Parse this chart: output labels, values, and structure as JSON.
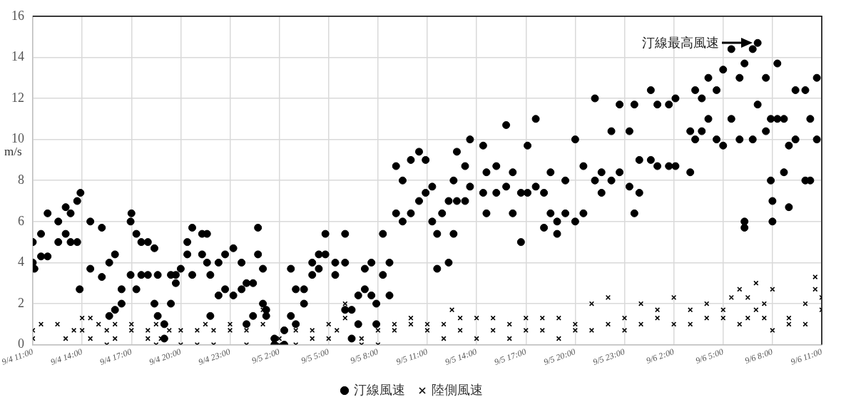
{
  "chart_data": {
    "type": "scatter",
    "ylabel": "m/s",
    "xlim": [
      "--09-04T11:00",
      "--09-06T11:00"
    ],
    "ylim": [
      0,
      16
    ],
    "xticks": [
      {
        "value": "--09-04T11:00",
        "label": "9/4 11:00"
      },
      {
        "value": "--09-04T14:00",
        "label": "9/4 14:00"
      },
      {
        "value": "--09-04T17:00",
        "label": "9/4 17:00"
      },
      {
        "value": "--09-04T20:00",
        "label": "9/4 20:00"
      },
      {
        "value": "--09-04T23:00",
        "label": "9/4 23:00"
      },
      {
        "value": "--09-05T02:00",
        "label": "9/5 2:00"
      },
      {
        "value": "--09-05T05:00",
        "label": "9/5 5:00"
      },
      {
        "value": "--09-05T08:00",
        "label": "9/5 8:00"
      },
      {
        "value": "--09-05T11:00",
        "label": "9/5 11:00"
      },
      {
        "value": "--09-05T14:00",
        "label": "9/5 14:00"
      },
      {
        "value": "--09-05T17:00",
        "label": "9/5 17:00"
      },
      {
        "value": "--09-05T20:00",
        "label": "9/5 20:00"
      },
      {
        "value": "--09-05T23:00",
        "label": "9/5 23:00"
      },
      {
        "value": "--09-06T02:00",
        "label": "9/6 2:00"
      },
      {
        "value": "--09-06T05:00",
        "label": "9/6 5:00"
      },
      {
        "value": "--09-06T08:00",
        "label": "9/6 8:00"
      },
      {
        "value": "--09-06T11:00",
        "label": "9/6 11:00"
      }
    ],
    "yticks": [
      0,
      2,
      4,
      6,
      8,
      10,
      12,
      14,
      16
    ],
    "grid": true,
    "legend": "bottom",
    "annotations": [
      "汀線最高風速"
    ],
    "series": [
      {
        "name": "汀線風速",
        "color": "#000000",
        "marker": "circle",
        "x": [
          "--09-04T11:00",
          "--09-04T11:00",
          "--09-04T11:06",
          "--09-04T11:30",
          "--09-04T11:30",
          "--09-04T11:54",
          "--09-04T11:54",
          "--09-04T12:33",
          "--09-04T12:33",
          "--09-04T13:00",
          "--09-04T13:00",
          "--09-04T13:18",
          "--09-04T13:18",
          "--09-04T13:42",
          "--09-04T13:42",
          "--09-04T13:54",
          "--09-04T13:51",
          "--09-04T14:30",
          "--09-04T14:30",
          "--09-04T15:12",
          "--09-04T15:12",
          "--09-04T15:39",
          "--09-04T15:39",
          "--09-04T16:00",
          "--09-04T16:00",
          "--09-04T16:24",
          "--09-04T16:24",
          "--09-04T16:57",
          "--09-04T16:57",
          "--09-04T17:00",
          "--09-04T17:18",
          "--09-04T17:18",
          "--09-04T17:36",
          "--09-04T17:36",
          "--09-04T18:00",
          "--09-04T18:00",
          "--09-04T18:24",
          "--09-04T18:24",
          "--09-04T18:36",
          "--09-04T18:36",
          "--09-04T19:00",
          "--09-04T19:00",
          "--09-04T19:24",
          "--09-04T19:24",
          "--09-04T19:42",
          "--09-04T19:42",
          "--09-04T20:00",
          "--09-04T20:24",
          "--09-04T20:24",
          "--09-04T20:42",
          "--09-04T20:42",
          "--09-04T21:18",
          "--09-04T21:18",
          "--09-04T21:36",
          "--09-04T21:36",
          "--09-04T21:48",
          "--09-04T21:48",
          "--09-04T22:18",
          "--09-04T22:18",
          "--09-04T22:42",
          "--09-04T22:42",
          "--09-04T23:12",
          "--09-04T23:12",
          "--09-04T23:42",
          "--09-04T23:42",
          "--09-05T00:00",
          "--09-05T00:00",
          "--09-05T00:24",
          "--09-05T00:24",
          "--09-05T00:42",
          "--09-05T00:42",
          "--09-05T01:00",
          "--09-05T01:00",
          "--09-05T01:12",
          "--09-05T01:12",
          "--09-05T01:42",
          "--09-05T01:42",
          "--09-05T02:18",
          "--09-05T02:18",
          "--09-05T02:42",
          "--09-05T02:42",
          "--09-05T03:00",
          "--09-05T03:00",
          "--09-05T03:30",
          "--09-05T03:30",
          "--09-05T04:00",
          "--09-05T04:00",
          "--09-05T04:24",
          "--09-05T04:24",
          "--09-05T04:48",
          "--09-05T04:48",
          "--09-05T05:24",
          "--09-05T05:24",
          "--09-05T06:00",
          "--09-05T06:00",
          "--09-05T06:00",
          "--09-05T06:24",
          "--09-05T06:24",
          "--09-05T06:48",
          "--09-05T06:48",
          "--09-05T07:12",
          "--09-05T07:12",
          "--09-05T07:36",
          "--09-05T07:36",
          "--09-05T07:54",
          "--09-05T07:54",
          "--09-05T08:18",
          "--09-05T08:18",
          "--09-05T08:42",
          "--09-05T08:42",
          "--09-05T09:06",
          "--09-05T09:06",
          "--09-05T09:30",
          "--09-05T09:30",
          "--09-05T10:00",
          "--09-05T10:00",
          "--09-05T10:30",
          "--09-05T10:30",
          "--09-05T10:54",
          "--09-05T10:54",
          "--09-05T11:18",
          "--09-05T11:18",
          "--09-05T11:36",
          "--09-05T11:36",
          "--09-05T11:54",
          "--09-05T12:18",
          "--09-05T12:18",
          "--09-05T12:36",
          "--09-05T12:36",
          "--09-05T12:48",
          "--09-05T12:48",
          "--09-05T13:18",
          "--09-05T13:18",
          "--09-05T13:36",
          "--09-05T13:36",
          "--09-05T14:24",
          "--09-05T14:24",
          "--09-05T14:36",
          "--09-05T14:36",
          "--09-05T15:12",
          "--09-05T15:12",
          "--09-05T15:48",
          "--09-05T15:48",
          "--09-05T16:12",
          "--09-05T16:12",
          "--09-05T16:42",
          "--09-05T16:42",
          "--09-05T17:06",
          "--09-05T17:06",
          "--09-05T17:36",
          "--09-05T17:36",
          "--09-05T18:06",
          "--09-05T18:06",
          "--09-05T18:30",
          "--09-05T18:30",
          "--09-05T18:54",
          "--09-05T18:54",
          "--09-05T19:24",
          "--09-05T19:24",
          "--09-05T20:00",
          "--09-05T20:00",
          "--09-05T20:30",
          "--09-05T20:30",
          "--09-05T21:12",
          "--09-05T21:12",
          "--09-05T21:36",
          "--09-05T21:36",
          "--09-05T22:12",
          "--09-05T22:12",
          "--09-05T22:42",
          "--09-05T22:42",
          "--09-05T23:18",
          "--09-05T23:18",
          "--09-05T23:36",
          "--09-05T23:36",
          "--09-05T23:54",
          "--09-05T23:54",
          "--09-06T00:36",
          "--09-06T00:36",
          "--09-06T01:00",
          "--09-06T01:00",
          "--09-06T01:42",
          "--09-06T01:42",
          "--09-06T02:06",
          "--09-06T02:06",
          "--09-06T03:00",
          "--09-06T03:00",
          "--09-06T03:18",
          "--09-06T03:18",
          "--09-06T03:42",
          "--09-06T03:42",
          "--09-06T04:06",
          "--09-06T04:06",
          "--09-06T04:36",
          "--09-06T04:36",
          "--09-06T05:00",
          "--09-06T05:00",
          "--09-06T05:30",
          "--09-06T05:30",
          "--09-06T06:00",
          "--09-06T06:00",
          "--09-06T06:18",
          "--09-06T06:18",
          "--09-06T06:18",
          "--09-06T06:48",
          "--09-06T06:48",
          "--09-06T07:06",
          "--09-06T07:06",
          "--09-06T07:36",
          "--09-06T07:36",
          "--09-06T07:54",
          "--09-06T07:54",
          "--09-06T08:00",
          "--09-06T08:00",
          "--09-06T08:18",
          "--09-06T08:18",
          "--09-06T08:42",
          "--09-06T08:42",
          "--09-06T09:00",
          "--09-06T09:00",
          "--09-06T09:24",
          "--09-06T09:24",
          "--09-06T10:00",
          "--09-06T10:00",
          "--09-06T10:18",
          "--09-06T10:18",
          "--09-06T10:42",
          "--09-06T10:42"
        ],
        "values": [
          5.0,
          4.0,
          3.7,
          5.4,
          4.3,
          6.4,
          4.3,
          6.0,
          5.0,
          6.7,
          5.4,
          6.4,
          5.0,
          7.0,
          5.0,
          7.4,
          2.7,
          6.0,
          3.7,
          5.7,
          3.3,
          4.0,
          1.4,
          4.4,
          1.7,
          2.7,
          2.0,
          6.0,
          3.4,
          6.4,
          5.4,
          2.7,
          5.0,
          3.4,
          5.0,
          3.4,
          4.7,
          2.0,
          3.4,
          1.4,
          1.0,
          0.3,
          3.4,
          2.0,
          3.4,
          3.0,
          3.7,
          5.0,
          4.4,
          5.7,
          3.4,
          5.4,
          4.4,
          5.4,
          4.0,
          3.4,
          1.4,
          4.0,
          2.4,
          4.4,
          2.7,
          4.7,
          2.4,
          4.0,
          2.7,
          3.0,
          1.0,
          3.0,
          1.4,
          5.7,
          4.4,
          3.7,
          2.0,
          1.7,
          1.4,
          0.3,
          0.0,
          0.7,
          0.0,
          3.7,
          1.4,
          2.7,
          1.0,
          2.7,
          2.0,
          4.0,
          3.4,
          4.4,
          3.7,
          5.4,
          4.4,
          4.0,
          3.4,
          5.4,
          4.0,
          1.7,
          1.7,
          0.3,
          2.4,
          1.0,
          3.7,
          2.7,
          4.0,
          2.4,
          2.0,
          1.0,
          5.4,
          3.4,
          4.0,
          2.4,
          8.7,
          6.4,
          8.0,
          6.0,
          9.0,
          6.4,
          9.4,
          7.0,
          9.0,
          7.4,
          7.7,
          6.0,
          5.4,
          3.7,
          6.4,
          7.0,
          4.0,
          8.0,
          5.4,
          9.4,
          7.0,
          8.7,
          7.0,
          10.0,
          7.7,
          9.7,
          7.4,
          8.4,
          6.4,
          8.7,
          7.4,
          10.7,
          7.7,
          8.4,
          6.4,
          7.4,
          5.0,
          9.7,
          7.4,
          11.0,
          7.7,
          7.4,
          5.7,
          8.4,
          6.4,
          6.0,
          5.4,
          8.0,
          6.4,
          10.0,
          6.0,
          8.7,
          6.4,
          12.0,
          8.0,
          8.4,
          7.4,
          10.4,
          8.0,
          11.7,
          8.4,
          10.4,
          7.7,
          11.7,
          6.4,
          9.0,
          7.4,
          12.4,
          9.0,
          11.7,
          8.7,
          11.7,
          8.7,
          12.0,
          8.7,
          10.4,
          8.4,
          12.4,
          10.0,
          12.0,
          10.4,
          13.0,
          11.0,
          12.4,
          10.0,
          13.4,
          9.7,
          14.4,
          11.0,
          13.0,
          10.0,
          13.7,
          6.0,
          5.7,
          14.4,
          10.0,
          14.7,
          11.7,
          13.0,
          10.4,
          11.0,
          8.0,
          7.0,
          6.0,
          13.7,
          11.0,
          11.0,
          8.4,
          9.7,
          6.7,
          12.4,
          10.0,
          12.4,
          8.0,
          11.0,
          8.0,
          13.0,
          10.0
        ]
      },
      {
        "name": "陸側風速",
        "color": "#000000",
        "marker": "cross",
        "x": [
          "--09-04T11:00",
          "--09-04T11:00",
          "--09-04T11:30",
          "--09-04T12:30",
          "--09-04T13:00",
          "--09-04T13:30",
          "--09-04T14:00",
          "--09-04T14:00",
          "--09-04T14:30",
          "--09-04T14:30",
          "--09-04T15:00",
          "--09-04T15:30",
          "--09-04T15:30",
          "--09-04T16:00",
          "--09-04T16:00",
          "--09-04T17:00",
          "--09-04T17:00",
          "--09-04T18:00",
          "--09-04T18:00",
          "--09-04T18:30",
          "--09-04T18:30",
          "--09-04T18:48",
          "--09-04T19:18",
          "--09-04T20:00",
          "--09-04T20:00",
          "--09-04T21:00",
          "--09-04T21:00",
          "--09-04T21:30",
          "--09-04T22:00",
          "--09-04T22:00",
          "--09-04T23:00",
          "--09-04T23:00",
          "--09-05T00:00",
          "--09-05T00:00",
          "--09-05T01:00",
          "--09-05T01:00",
          "--09-05T02:00",
          "--09-05T02:00",
          "--09-05T03:00",
          "--09-05T03:00",
          "--09-05T04:00",
          "--09-05T04:00",
          "--09-05T05:00",
          "--09-05T05:00",
          "--09-05T05:30",
          "--09-05T06:00",
          "--09-05T06:00",
          "--09-05T07:00",
          "--09-05T07:00",
          "--09-05T08:00",
          "--09-05T08:00",
          "--09-05T09:00",
          "--09-05T09:00",
          "--09-05T10:00",
          "--09-05T10:00",
          "--09-05T11:00",
          "--09-05T11:00",
          "--09-05T12:00",
          "--09-05T12:00",
          "--09-05T12:30",
          "--09-05T13:00",
          "--09-05T13:00",
          "--09-05T14:00",
          "--09-05T14:00",
          "--09-05T15:00",
          "--09-05T15:00",
          "--09-05T16:00",
          "--09-05T16:00",
          "--09-05T17:00",
          "--09-05T17:00",
          "--09-05T18:00",
          "--09-05T18:00",
          "--09-05T19:00",
          "--09-05T19:00",
          "--09-05T20:00",
          "--09-05T20:00",
          "--09-05T21:00",
          "--09-05T21:00",
          "--09-05T22:00",
          "--09-05T22:00",
          "--09-05T23:00",
          "--09-05T23:00",
          "--09-06T00:00",
          "--09-06T00:00",
          "--09-06T01:00",
          "--09-06T01:00",
          "--09-06T02:00",
          "--09-06T02:00",
          "--09-06T03:00",
          "--09-06T03:00",
          "--09-06T04:00",
          "--09-06T04:00",
          "--09-06T05:00",
          "--09-06T05:00",
          "--09-06T05:30",
          "--09-06T06:00",
          "--09-06T06:00",
          "--09-06T06:30",
          "--09-06T06:30",
          "--09-06T07:00",
          "--09-06T07:00",
          "--09-06T07:30",
          "--09-06T07:30",
          "--09-06T08:00",
          "--09-06T08:00",
          "--09-06T09:00",
          "--09-06T09:00",
          "--09-06T10:00",
          "--09-06T10:00",
          "--09-06T10:36",
          "--09-06T10:36",
          "--09-06T11:00",
          "--09-06T11:00"
        ],
        "values": [
          0.3,
          0.7,
          1.0,
          1.0,
          0.3,
          0.7,
          1.3,
          0.7,
          1.3,
          0.3,
          1.0,
          0.0,
          0.7,
          1.0,
          0.3,
          1.0,
          0.7,
          0.7,
          0.3,
          0.0,
          1.0,
          0.3,
          0.7,
          0.7,
          0.0,
          0.7,
          0.0,
          1.0,
          0.0,
          0.7,
          1.0,
          0.7,
          0.0,
          0.7,
          1.7,
          1.0,
          0.3,
          0.0,
          0.7,
          0.0,
          0.7,
          0.3,
          1.0,
          0.3,
          0.7,
          1.3,
          2.0,
          0.3,
          0.0,
          0.7,
          0.0,
          1.0,
          0.7,
          1.3,
          1.0,
          1.0,
          0.7,
          1.0,
          0.3,
          1.7,
          1.3,
          0.7,
          1.3,
          0.3,
          1.3,
          0.7,
          1.0,
          0.3,
          1.3,
          0.7,
          1.3,
          0.7,
          1.3,
          0.3,
          1.0,
          0.7,
          2.0,
          0.7,
          2.3,
          1.0,
          1.3,
          0.7,
          2.0,
          1.0,
          1.7,
          1.3,
          2.3,
          1.0,
          1.7,
          1.0,
          2.0,
          1.3,
          1.3,
          1.7,
          2.3,
          2.7,
          1.0,
          2.3,
          1.3,
          3.0,
          1.7,
          2.0,
          1.3,
          2.7,
          0.7,
          1.3,
          1.0,
          2.0,
          1.0,
          3.3,
          2.7,
          2.3,
          1.7
        ]
      }
    ]
  }
}
